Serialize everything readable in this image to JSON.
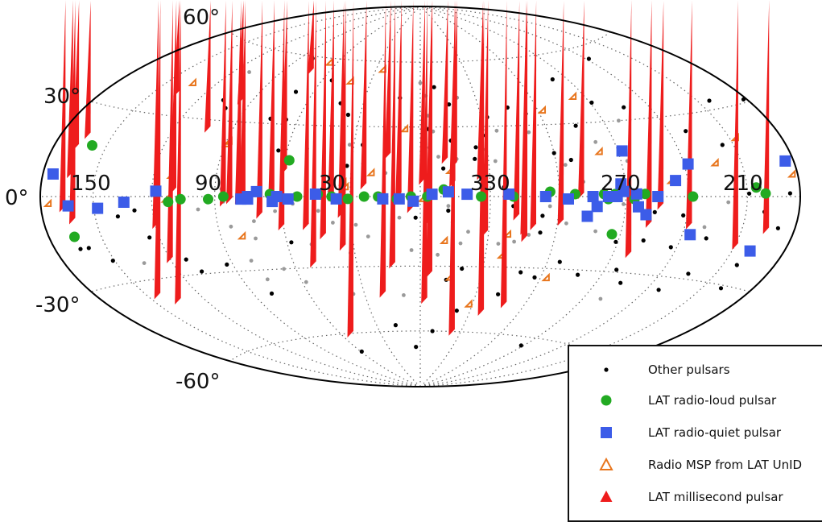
{
  "chart_data": {
    "type": "scatter",
    "projection": "Hammer-Aitoff (galactic coordinates)",
    "grid": true,
    "legend_position": "bottom-right",
    "tick_labels": {
      "latitude": [
        "60°",
        "30°",
        "0°",
        "-30°",
        "-60°"
      ],
      "longitude": [
        "150",
        "90",
        "30",
        "330",
        "270",
        "210"
      ]
    },
    "colors": {
      "other": "#000000",
      "other_faint": "#9a9a9a",
      "radio_loud": "#22aa22",
      "radio_quiet": "#3c5ce8",
      "msp_unid": "#e8761e",
      "millisecond": "#ee1c1c",
      "grid": "#666666",
      "frame": "#000000"
    },
    "series": [
      {
        "name": "Other pulsars",
        "marker": "dot",
        "points": [
          [
            -10,
            12
          ],
          [
            -8,
            48
          ],
          [
            -12,
            -6
          ],
          [
            -25,
            21
          ],
          [
            -14,
            24
          ],
          [
            -33,
            34
          ],
          [
            -24,
            16
          ],
          [
            -29,
            26
          ],
          [
            -27,
            -7
          ],
          [
            -36,
            4
          ],
          [
            -40,
            -4
          ],
          [
            -60,
            18
          ],
          [
            -53,
            -8
          ],
          [
            -53,
            -15
          ],
          [
            -66,
            -27
          ],
          [
            -57,
            -34
          ],
          [
            -89,
            -18
          ],
          [
            -96,
            -29
          ],
          [
            -102,
            -17
          ],
          [
            -117,
            -19
          ],
          [
            -104,
            -6
          ],
          [
            -118,
            -7
          ],
          [
            -133,
            -15
          ],
          [
            -151,
            1
          ],
          [
            -160,
            -5
          ],
          [
            -158,
            -23
          ],
          [
            -170,
            -10
          ],
          [
            -161,
            -31
          ],
          [
            -129,
            24
          ],
          [
            -144,
            18
          ],
          [
            -174,
            1
          ],
          [
            -178,
            31
          ],
          [
            -157,
            33
          ],
          [
            -122,
            55
          ],
          [
            -81,
            49
          ],
          [
            -91,
            38
          ],
          [
            -75,
            29
          ],
          [
            -53,
            35
          ],
          [
            -45,
            38
          ],
          [
            -106,
            35
          ],
          [
            -67,
            15
          ],
          [
            -20,
            -31
          ],
          [
            -13,
            -36
          ],
          [
            -9,
            -60
          ],
          [
            -49,
            -32
          ],
          [
            -78,
            -32
          ],
          [
            -103,
            -34
          ],
          [
            -127,
            -35
          ],
          [
            -135,
            -28
          ],
          [
            -42,
            -42
          ],
          [
            4,
            -68
          ],
          [
            -22,
            -50
          ],
          [
            17,
            -57
          ],
          [
            59,
            -69
          ],
          [
            -88,
            -64
          ],
          [
            32,
            13
          ],
          [
            36,
            35
          ],
          [
            42,
            40
          ],
          [
            54,
            50
          ],
          [
            66,
            32
          ],
          [
            74,
            32
          ],
          [
            70,
            44
          ],
          [
            81,
            59
          ],
          [
            64,
            19
          ],
          [
            101,
            35
          ],
          [
            106,
            38
          ],
          [
            129,
            -5
          ],
          [
            108,
            -29
          ],
          [
            112,
            -24
          ],
          [
            125,
            -15
          ],
          [
            138,
            -7
          ],
          [
            93,
            -27
          ],
          [
            80,
            -40
          ],
          [
            58,
            -19
          ],
          [
            151,
            -22
          ],
          [
            160,
            -17
          ],
          [
            165,
            -17
          ],
          [
            2,
            -9
          ],
          [
            -4,
            29
          ],
          [
            -15,
            40
          ],
          [
            11,
            43
          ],
          [
            26,
            22
          ]
        ]
      },
      {
        "name": "Other pulsars (faint)",
        "marker": "dot-faint",
        "points": [
          [
            -21,
            -15
          ],
          [
            -45,
            2
          ],
          [
            -6,
            28
          ],
          [
            -35,
            -20
          ],
          [
            44,
            -6
          ],
          [
            25,
            17
          ],
          [
            51,
            20
          ],
          [
            -51,
            27
          ],
          [
            -30,
            -33
          ],
          [
            -8,
            -25
          ],
          [
            4,
            -23
          ],
          [
            9,
            -9
          ],
          [
            -14,
            -11
          ],
          [
            -42,
            -19
          ],
          [
            -71,
            6
          ],
          [
            -64,
            -11
          ],
          [
            -89,
            -3
          ],
          [
            -64,
            13
          ],
          [
            0,
            50
          ],
          [
            -3,
            44
          ],
          [
            -4,
            35
          ],
          [
            -4,
            29
          ],
          [
            -4,
            21
          ],
          [
            -8,
            17
          ],
          [
            15,
            10
          ],
          [
            -33,
            15
          ],
          [
            -28,
            20
          ],
          [
            -16,
            16
          ],
          [
            32,
            22
          ],
          [
            25,
            14
          ],
          [
            34,
            8
          ],
          [
            39,
            2
          ],
          [
            46,
            0
          ],
          [
            55,
            -3
          ],
          [
            63,
            -6
          ],
          [
            73,
            -10
          ],
          [
            84,
            -12
          ],
          [
            66,
            -30
          ],
          [
            58,
            -36
          ],
          [
            36,
            -42
          ],
          [
            23,
            -17
          ],
          [
            32,
            -24
          ],
          [
            49,
            -20
          ],
          [
            28,
            -12
          ],
          [
            38,
            -11
          ],
          [
            -12,
            -4
          ],
          [
            -56,
            -4
          ],
          [
            -56,
            2
          ],
          [
            -93,
            14
          ],
          [
            -81,
            22
          ],
          [
            -98,
            30
          ],
          [
            -100,
            -41
          ],
          [
            74,
            -17
          ],
          [
            80,
            -26
          ],
          [
            87,
            3
          ],
          [
            107,
            0
          ],
          [
            135,
            -24
          ],
          [
            110,
            50
          ],
          [
            -20,
            43
          ],
          [
            -140,
            -2
          ],
          [
            -130,
            -11
          ],
          [
            86,
            -2
          ],
          [
            98,
            -5
          ],
          [
            18,
            -32
          ],
          [
            -18,
            -20
          ],
          [
            -48,
            -16
          ],
          [
            -36,
            28
          ],
          [
            77,
            -34
          ],
          [
            9,
            -43
          ],
          [
            -78,
            -14
          ]
        ]
      },
      {
        "name": "LAT radio-loud pulsar",
        "marker": "circle",
        "points": [
          [
            -160,
            1
          ],
          [
            -155,
            3
          ],
          [
            -122,
            0
          ],
          [
            -105,
            0
          ],
          [
            -99,
            1
          ],
          [
            -94,
            -1
          ],
          [
            -85,
            1
          ],
          [
            -82,
            -1
          ],
          [
            -80,
            1
          ],
          [
            -67,
            1
          ],
          [
            -56,
            2
          ],
          [
            -40,
            0
          ],
          [
            -26,
            0
          ],
          [
            -20,
            1
          ],
          [
            -10,
            3
          ],
          [
            -3,
            0
          ],
          [
            4,
            0
          ],
          [
            10,
            -1
          ],
          [
            18,
            0
          ],
          [
            24,
            0
          ],
          [
            31,
            -1
          ],
          [
            38,
            0
          ],
          [
            44,
            1
          ],
          [
            53,
            0
          ],
          [
            65,
            1
          ],
          [
            77,
            -1
          ],
          [
            86,
            0
          ],
          [
            93,
            -1
          ],
          [
            106,
            -1
          ],
          [
            112,
            -2
          ],
          [
            -86,
            -15
          ],
          [
            158,
            17
          ],
          [
            165,
            -13
          ],
          [
            58,
            15
          ]
        ]
      },
      {
        "name": "LAT radio-quiet pulsar",
        "marker": "square",
        "points": [
          [
            -175,
            11
          ],
          [
            -160,
            -18
          ],
          [
            -124,
            -14
          ],
          [
            -122,
            12
          ],
          [
            -114,
            6
          ],
          [
            -105,
            0
          ],
          [
            -100,
            -7
          ],
          [
            -96,
            -4
          ],
          [
            -95,
            1
          ],
          [
            -92,
            18
          ],
          [
            -89,
            2
          ],
          [
            -88,
            5
          ],
          [
            -86,
            0
          ],
          [
            -82,
            0
          ],
          [
            -77,
            -4
          ],
          [
            -75,
            0
          ],
          [
            -73,
            -8
          ],
          [
            -64,
            -1
          ],
          [
            -54,
            0
          ],
          [
            -38,
            1
          ],
          [
            -20,
            1
          ],
          [
            -12,
            2
          ],
          [
            -5,
            1
          ],
          [
            3,
            -2
          ],
          [
            9,
            -1
          ],
          [
            16,
            -1
          ],
          [
            36,
            -1
          ],
          [
            45,
            1
          ],
          [
            57,
            -1
          ],
          [
            62,
            0
          ],
          [
            64,
            -2
          ],
          [
            71,
            2
          ],
          [
            75,
            -1
          ],
          [
            75,
            0
          ],
          [
            78,
            -1
          ],
          [
            118,
            2
          ],
          [
            134,
            -2
          ],
          [
            148,
            -4
          ],
          [
            164,
            -3
          ],
          [
            174,
            7
          ]
        ]
      },
      {
        "name": "Radio MSP from LAT UnID",
        "marker": "triangle-open",
        "points": [
          [
            -178,
            6
          ],
          [
            -154,
            19
          ],
          [
            -137,
            11
          ],
          [
            -113,
            5
          ],
          [
            -82,
            17
          ],
          [
            -84,
            40
          ],
          [
            -63,
            35
          ],
          [
            -65,
            -35
          ],
          [
            -40,
            -17
          ],
          [
            -39,
            -26
          ],
          [
            -30,
            -48
          ],
          [
            -12,
            -20
          ],
          [
            -16,
            -36
          ],
          [
            -14,
            10
          ],
          [
            -2,
            -2
          ],
          [
            6,
            28
          ],
          [
            20,
            9
          ],
          [
            23,
            55
          ],
          [
            31,
            3
          ],
          [
            32,
            5
          ],
          [
            38,
            6
          ],
          [
            40,
            49
          ],
          [
            62,
            57
          ],
          [
            79,
            -17
          ],
          [
            87,
            21
          ],
          [
            88,
            20
          ],
          [
            110,
            7
          ],
          [
            112,
            -2
          ],
          [
            131,
            42
          ],
          [
            174,
            -3
          ]
        ]
      },
      {
        "name": "LAT millisecond pulsar",
        "marker": "triangle-filled",
        "points": [
          [
            -166,
            -12
          ],
          [
            -153,
            -18
          ],
          [
            -124,
            -12
          ],
          [
            -108,
            -5
          ],
          [
            -104,
            -12
          ],
          [
            -100,
            -24
          ],
          [
            -71,
            -1
          ],
          [
            -63,
            -12
          ],
          [
            -51,
            -14
          ],
          [
            -51,
            -48
          ],
          [
            -47,
            -16
          ],
          [
            -43,
            -10
          ],
          [
            -40,
            -52
          ],
          [
            -30,
            -17
          ],
          [
            -27,
            -62
          ],
          [
            -27,
            7
          ],
          [
            -16,
            12
          ],
          [
            -5,
            -12
          ],
          [
            -4,
            -47
          ],
          [
            -12,
            14
          ],
          [
            -15,
            4
          ],
          [
            -2,
            5
          ],
          [
            3,
            -7
          ],
          [
            8,
            -1
          ],
          [
            12,
            -31
          ],
          [
            19,
            -44
          ],
          [
            23,
            3
          ],
          [
            33,
            -9
          ],
          [
            34,
            -23
          ],
          [
            37,
            -2
          ],
          [
            42,
            -18
          ],
          [
            49,
            -14
          ],
          [
            50,
            -30
          ],
          [
            53,
            -62
          ],
          [
            60,
            -14
          ],
          [
            63,
            -1
          ],
          [
            69,
            -9
          ],
          [
            76,
            -3
          ],
          [
            78,
            -3
          ],
          [
            82,
            -3
          ],
          [
            85,
            -4
          ],
          [
            93,
            37
          ],
          [
            100,
            25
          ],
          [
            108,
            1
          ],
          [
            119,
            -12
          ],
          [
            120,
            -25
          ],
          [
            132,
            37
          ],
          [
            137,
            -40
          ],
          [
            145,
            -37
          ],
          [
            161,
            19
          ],
          [
            162,
            -9
          ],
          [
            162,
            6
          ],
          [
            166,
            -5
          ],
          [
            164,
            15
          ],
          [
            -6,
            -35
          ],
          [
            -48,
            -19
          ],
          [
            58,
            9
          ],
          [
            68,
            52
          ],
          [
            13,
            16
          ]
        ]
      }
    ],
    "legend": [
      {
        "label": "Other pulsars",
        "marker": "dot"
      },
      {
        "label": "LAT radio-loud pulsar",
        "marker": "circle"
      },
      {
        "label": "LAT radio-quiet pulsar",
        "marker": "square"
      },
      {
        "label": "Radio MSP from LAT UnID",
        "marker": "triangle-open"
      },
      {
        "label": "LAT millisecond pulsar",
        "marker": "triangle-filled"
      }
    ]
  }
}
